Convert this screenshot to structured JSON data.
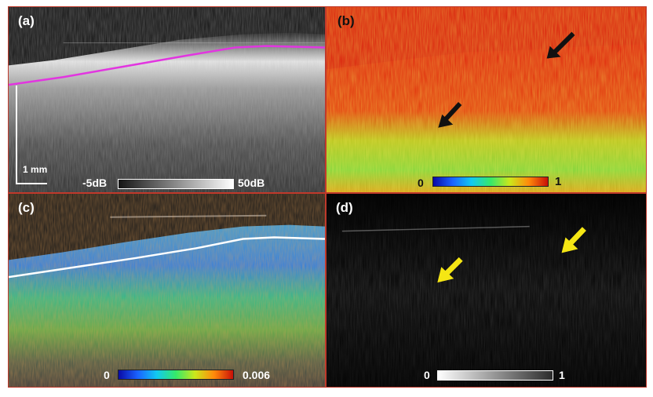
{
  "panels": {
    "a": {
      "label": "(a)",
      "scalebar": "1 mm",
      "colorbar_min": "-5dB",
      "colorbar_max": "50dB",
      "surface_line_color": "#e235e0"
    },
    "b": {
      "label": "(b)",
      "colorbar_min": "0",
      "colorbar_max": "1",
      "arrow_color": "#111111"
    },
    "c": {
      "label": "(c)",
      "colorbar_min": "0",
      "colorbar_max": "0.006",
      "surface_line_color": "#ffffff"
    },
    "d": {
      "label": "(d)",
      "colorbar_min": "0",
      "colorbar_max": "1",
      "arrow_color": "#f5e614"
    }
  }
}
